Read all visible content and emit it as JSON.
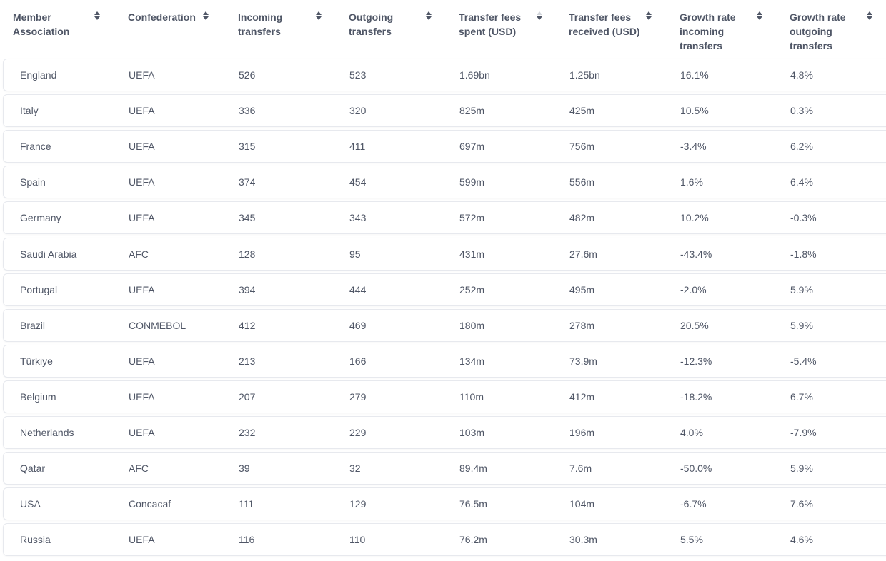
{
  "columns": [
    {
      "key": "association",
      "label": "Member Association"
    },
    {
      "key": "confederation",
      "label": "Confederation"
    },
    {
      "key": "incoming",
      "label": "Incoming transfers"
    },
    {
      "key": "outgoing",
      "label": "Outgoing transfers"
    },
    {
      "key": "spent",
      "label": "Transfer fees spent (USD)"
    },
    {
      "key": "received",
      "label": "Transfer fees received (USD)"
    },
    {
      "key": "growth_in",
      "label": "Growth rate incoming transfers"
    },
    {
      "key": "growth_out",
      "label": "Growth rate outgoing transfers"
    }
  ],
  "header_lines": [
    [
      "Member",
      "Association"
    ],
    [
      "Confederation"
    ],
    [
      "Incoming",
      "transfers"
    ],
    [
      "Outgoing",
      "transfers"
    ],
    [
      "Transfer fees",
      "spent (USD)"
    ],
    [
      "Transfer fees",
      "received (USD)"
    ],
    [
      "Growth rate",
      "incoming",
      "transfers"
    ],
    [
      "Growth rate",
      "outgoing",
      "transfers"
    ]
  ],
  "sorted_column": "spent",
  "sort_direction": "descending",
  "rows": [
    [
      "England",
      "UEFA",
      "526",
      "523",
      "1.69bn",
      "1.25bn",
      "16.1%",
      "4.8%"
    ],
    [
      "Italy",
      "UEFA",
      "336",
      "320",
      "825m",
      "425m",
      "10.5%",
      "0.3%"
    ],
    [
      "France",
      "UEFA",
      "315",
      "411",
      "697m",
      "756m",
      "-3.4%",
      "6.2%"
    ],
    [
      "Spain",
      "UEFA",
      "374",
      "454",
      "599m",
      "556m",
      "1.6%",
      "6.4%"
    ],
    [
      "Germany",
      "UEFA",
      "345",
      "343",
      "572m",
      "482m",
      "10.2%",
      "-0.3%"
    ],
    [
      "Saudi Arabia",
      "AFC",
      "128",
      "95",
      "431m",
      "27.6m",
      "-43.4%",
      "-1.8%"
    ],
    [
      "Portugal",
      "UEFA",
      "394",
      "444",
      "252m",
      "495m",
      "-2.0%",
      "5.9%"
    ],
    [
      "Brazil",
      "CONMEBOL",
      "412",
      "469",
      "180m",
      "278m",
      "20.5%",
      "5.9%"
    ],
    [
      "Türkiye",
      "UEFA",
      "213",
      "166",
      "134m",
      "73.9m",
      "-12.3%",
      "-5.4%"
    ],
    [
      "Belgium",
      "UEFA",
      "207",
      "279",
      "110m",
      "412m",
      "-18.2%",
      "6.7%"
    ],
    [
      "Netherlands",
      "UEFA",
      "232",
      "229",
      "103m",
      "196m",
      "4.0%",
      "-7.9%"
    ],
    [
      "Qatar",
      "AFC",
      "39",
      "32",
      "89.4m",
      "7.6m",
      "-50.0%",
      "5.9%"
    ],
    [
      "USA",
      "Concacaf",
      "111",
      "129",
      "76.5m",
      "104m",
      "-6.7%",
      "7.6%"
    ],
    [
      "Russia",
      "UEFA",
      "116",
      "110",
      "76.2m",
      "30.3m",
      "5.5%",
      "4.6%"
    ]
  ]
}
